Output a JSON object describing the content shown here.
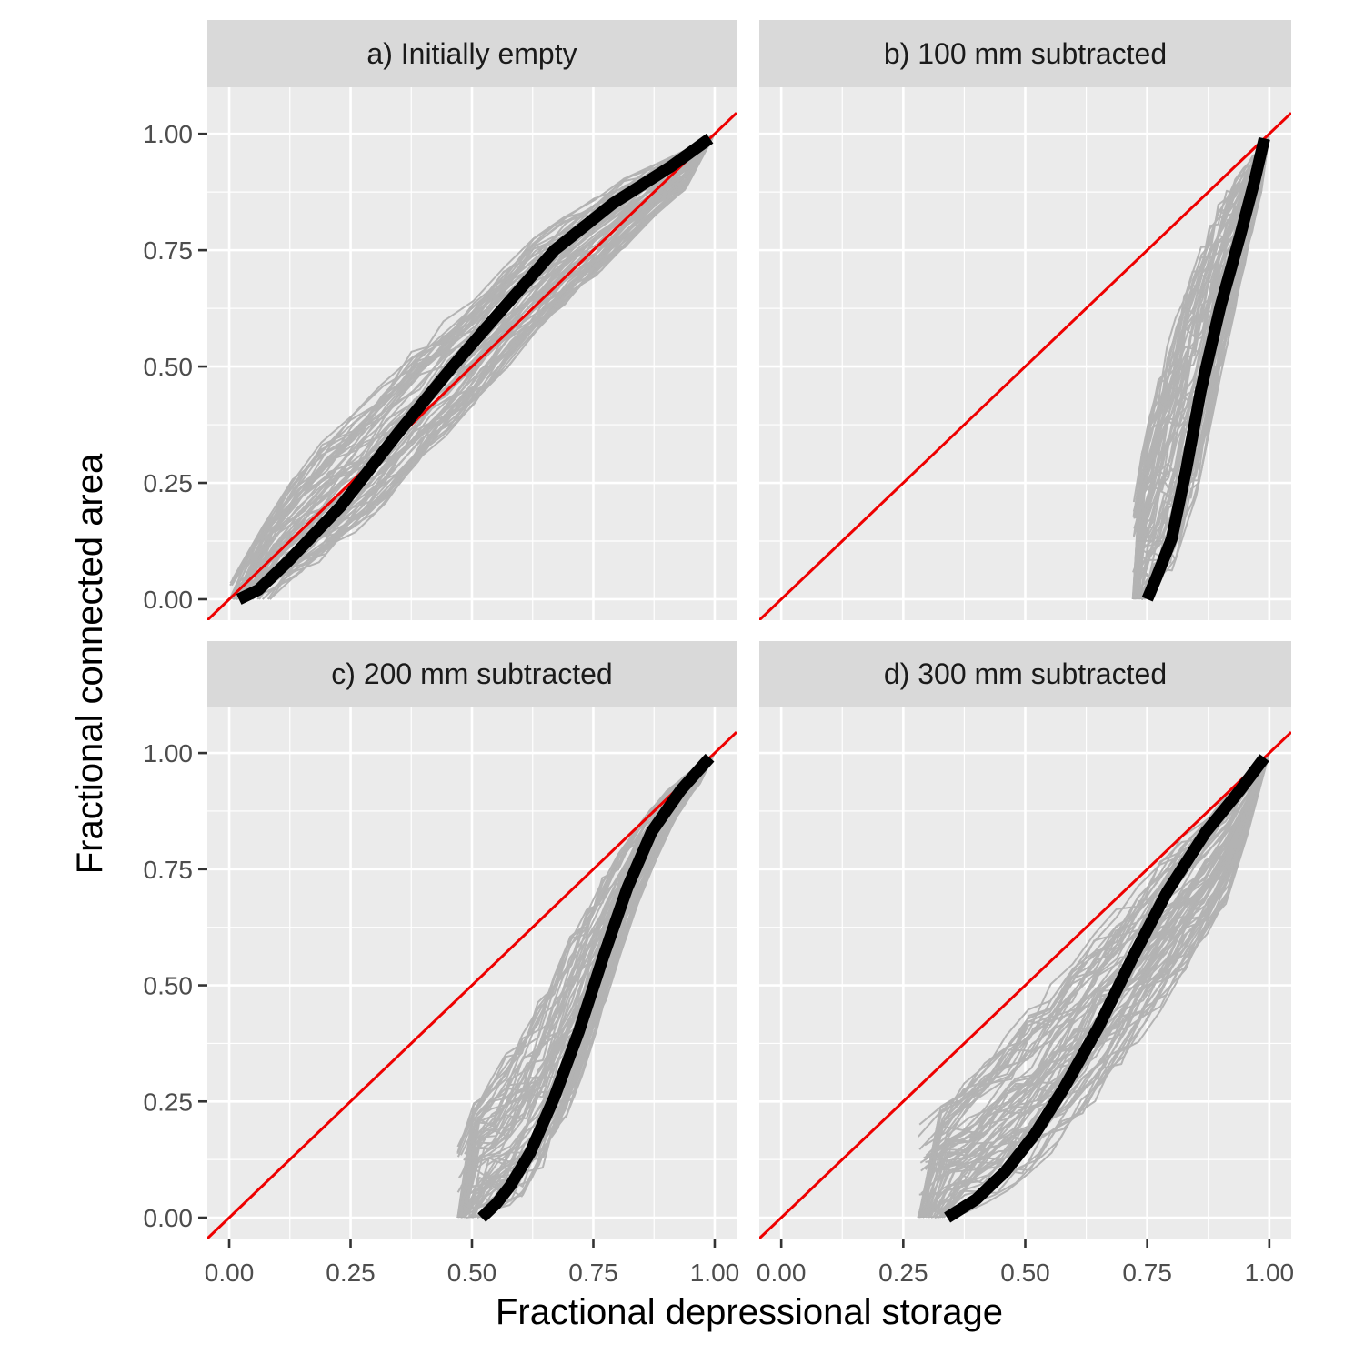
{
  "chart_data": {
    "type": "line",
    "xlabel": "Fractional depressional storage",
    "ylabel": "Fractional connected area",
    "xlim": [
      -0.045,
      1.045
    ],
    "ylim": [
      -0.045,
      1.1
    ],
    "x_ticks": [
      "0.00",
      "0.25",
      "0.50",
      "0.75",
      "1.00"
    ],
    "y_ticks": [
      "0.00",
      "0.25",
      "0.50",
      "0.75",
      "1.00"
    ],
    "grid": true,
    "colors": {
      "panel_bg": "#EBEBEB",
      "strip_bg": "#D9D9D9",
      "grid": "#FFFFFF",
      "ensemble": "#B3B3B3",
      "mean": "#000000",
      "one_to_one": "#EE0000"
    },
    "panels": [
      {
        "title": "a) Initially empty",
        "mean_curve": {
          "x": [
            0.02,
            0.06,
            0.12,
            0.23,
            0.35,
            0.46,
            0.56,
            0.67,
            0.79,
            0.91,
            0.99
          ],
          "y": [
            0.0,
            0.02,
            0.08,
            0.2,
            0.36,
            0.5,
            0.62,
            0.75,
            0.85,
            0.93,
            0.99
          ]
        },
        "ensemble_band": {
          "x": [
            0.0,
            0.1,
            0.2,
            0.3,
            0.4,
            0.5,
            0.6,
            0.7,
            0.8,
            0.9,
            1.0
          ],
          "upper": [
            0.03,
            0.22,
            0.35,
            0.45,
            0.56,
            0.65,
            0.76,
            0.83,
            0.9,
            0.95,
            1.0
          ],
          "lower": [
            0.0,
            0.02,
            0.09,
            0.18,
            0.3,
            0.41,
            0.53,
            0.64,
            0.74,
            0.85,
            0.92
          ]
        }
      },
      {
        "title": "b) 100 mm subtracted",
        "mean_curve": {
          "x": [
            0.75,
            0.77,
            0.8,
            0.83,
            0.86,
            0.9,
            0.94,
            0.97,
            0.99
          ],
          "y": [
            0.0,
            0.05,
            0.13,
            0.28,
            0.45,
            0.63,
            0.78,
            0.9,
            0.99
          ]
        },
        "ensemble_band": {
          "x": [
            0.72,
            0.75,
            0.8,
            0.85,
            0.9,
            0.95,
            1.0
          ],
          "upper": [
            0.2,
            0.38,
            0.58,
            0.73,
            0.86,
            0.93,
            1.0
          ],
          "lower": [
            0.0,
            0.0,
            0.06,
            0.22,
            0.48,
            0.72,
            0.95
          ]
        }
      },
      {
        "title": "c) 200 mm subtracted",
        "mean_curve": {
          "x": [
            0.52,
            0.55,
            0.58,
            0.62,
            0.67,
            0.72,
            0.77,
            0.82,
            0.87,
            0.93,
            0.99
          ],
          "y": [
            0.0,
            0.03,
            0.07,
            0.14,
            0.26,
            0.4,
            0.56,
            0.71,
            0.83,
            0.92,
            0.99
          ]
        },
        "ensemble_band": {
          "x": [
            0.47,
            0.5,
            0.55,
            0.6,
            0.65,
            0.7,
            0.75,
            0.8,
            0.85,
            0.9,
            0.95,
            1.0
          ],
          "upper": [
            0.15,
            0.25,
            0.32,
            0.4,
            0.5,
            0.6,
            0.7,
            0.79,
            0.86,
            0.92,
            0.96,
            1.0
          ],
          "lower": [
            0.0,
            0.0,
            0.01,
            0.04,
            0.11,
            0.22,
            0.38,
            0.55,
            0.7,
            0.82,
            0.91,
            0.97
          ]
        }
      },
      {
        "title": "d) 300 mm subtracted",
        "mean_curve": {
          "x": [
            0.34,
            0.4,
            0.46,
            0.52,
            0.58,
            0.65,
            0.72,
            0.79,
            0.87,
            0.94,
            0.99
          ],
          "y": [
            0.0,
            0.04,
            0.1,
            0.18,
            0.28,
            0.41,
            0.56,
            0.7,
            0.83,
            0.92,
            0.99
          ]
        },
        "ensemble_band": {
          "x": [
            0.28,
            0.35,
            0.4,
            0.5,
            0.6,
            0.7,
            0.8,
            0.9,
            0.95,
            1.0
          ],
          "upper": [
            0.2,
            0.27,
            0.32,
            0.44,
            0.56,
            0.68,
            0.8,
            0.9,
            0.95,
            1.0
          ],
          "lower": [
            0.0,
            0.0,
            0.02,
            0.08,
            0.19,
            0.33,
            0.48,
            0.64,
            0.8,
            0.96
          ]
        }
      }
    ]
  }
}
